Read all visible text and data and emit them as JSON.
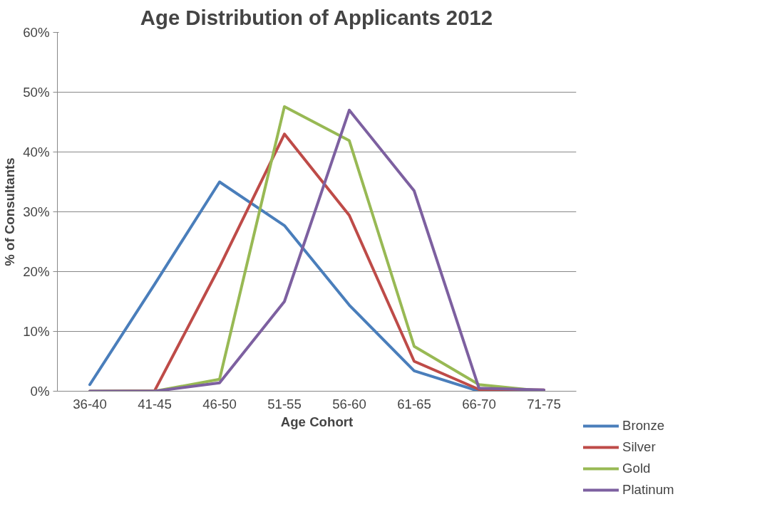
{
  "chart_data": {
    "type": "line",
    "title": "Age Distribution of Applicants 2012",
    "xlabel": "Age Cohort",
    "ylabel": "% of Consultants",
    "categories": [
      "36-40",
      "41-45",
      "46-50",
      "51-55",
      "56-60",
      "61-65",
      "66-70",
      "71-75"
    ],
    "series": [
      {
        "name": "Bronze",
        "color": "#4a7ebb",
        "values": [
          1.1,
          17.9,
          35,
          27.7,
          14.4,
          3.4,
          0,
          0
        ]
      },
      {
        "name": "Silver",
        "color": "#be4b48",
        "values": [
          0,
          0.1,
          20.8,
          43,
          29.4,
          5,
          0.3,
          0.2
        ]
      },
      {
        "name": "Gold",
        "color": "#98b954",
        "values": [
          0,
          0,
          2,
          47.6,
          41.9,
          7.5,
          1.1,
          0
        ]
      },
      {
        "name": "Platinum",
        "color": "#7d60a0",
        "values": [
          0,
          0,
          1.4,
          15,
          47,
          33.5,
          0.5,
          0.2
        ]
      }
    ],
    "ylim": [
      0,
      60
    ],
    "yticks": [
      {
        "value": 0,
        "label": "0%"
      },
      {
        "value": 10,
        "label": "10%"
      },
      {
        "value": 20,
        "label": "20%"
      },
      {
        "value": 30,
        "label": "30%"
      },
      {
        "value": 40,
        "label": "40%"
      },
      {
        "value": 50,
        "label": "50%"
      },
      {
        "value": 60,
        "label": "60%"
      }
    ],
    "grid": "y",
    "legend": "right",
    "line_style": "solid",
    "marker": "none"
  }
}
